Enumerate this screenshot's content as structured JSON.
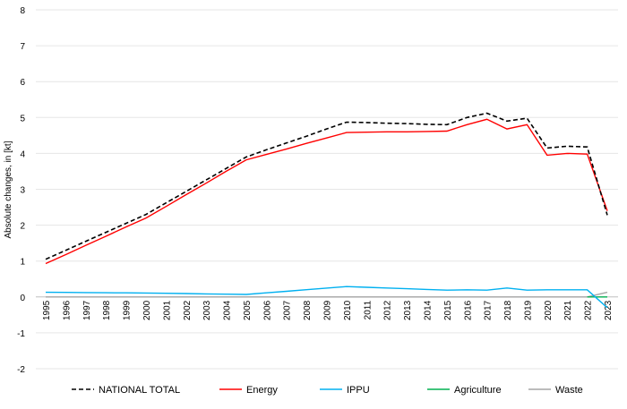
{
  "chart_data": {
    "type": "line",
    "title": "",
    "xlabel": "",
    "ylabel": "Absolute changes, in [kt]",
    "ylim": [
      -2,
      8
    ],
    "yticks": [
      -2,
      -1,
      0,
      1,
      2,
      3,
      4,
      5,
      6,
      7,
      8
    ],
    "grid": true,
    "legend_position": "bottom",
    "categories": [
      "1995",
      "1996",
      "1997",
      "1998",
      "1999",
      "2000",
      "2001",
      "2002",
      "2003",
      "2004",
      "2005",
      "2006",
      "2007",
      "2008",
      "2009",
      "2010",
      "2011",
      "2012",
      "2013",
      "2014",
      "2015",
      "2016",
      "2017",
      "2018",
      "2019",
      "2020",
      "2021",
      "2022",
      "2023"
    ],
    "series": [
      {
        "name": "NATIONAL TOTAL",
        "color": "#000000",
        "dashed": true,
        "values": [
          1.05,
          1.3,
          1.55,
          1.8,
          2.05,
          2.3,
          2.62,
          2.94,
          3.26,
          3.58,
          3.9,
          4.1,
          4.29,
          4.48,
          4.68,
          4.87,
          4.86,
          4.84,
          4.83,
          4.81,
          4.8,
          5.0,
          5.12,
          4.9,
          4.98,
          4.15,
          4.2,
          4.18,
          2.28
        ]
      },
      {
        "name": "Energy",
        "color": "#FF0000",
        "dashed": false,
        "values": [
          0.93,
          1.18,
          1.44,
          1.69,
          1.95,
          2.2,
          2.52,
          2.85,
          3.17,
          3.5,
          3.82,
          3.97,
          4.12,
          4.28,
          4.43,
          4.58,
          4.59,
          4.6,
          4.6,
          4.61,
          4.62,
          4.8,
          4.95,
          4.68,
          4.8,
          3.95,
          4.0,
          3.98,
          2.4
        ]
      },
      {
        "name": "IPPU",
        "color": "#00B0F0",
        "dashed": false,
        "values": [
          0.13,
          0.126,
          0.122,
          0.118,
          0.114,
          0.11,
          0.102,
          0.094,
          0.086,
          0.078,
          0.07,
          0.114,
          0.158,
          0.202,
          0.246,
          0.29,
          0.27,
          0.25,
          0.23,
          0.21,
          0.19,
          0.2,
          0.19,
          0.25,
          0.19,
          0.2,
          0.2,
          0.2,
          -0.3
        ]
      },
      {
        "name": "Agriculture",
        "color": "#00B050",
        "dashed": false,
        "values": [
          0,
          0,
          0,
          0,
          0,
          0,
          0,
          0,
          0,
          0,
          0,
          0,
          0,
          0,
          0,
          0,
          0,
          0,
          0,
          0,
          0,
          0,
          0,
          0,
          0,
          0,
          0,
          0,
          0.0
        ]
      },
      {
        "name": "Waste",
        "color": "#A5A5A5",
        "dashed": false,
        "values": [
          0,
          0,
          0,
          0,
          0,
          0,
          0,
          0,
          0,
          0,
          0,
          0,
          0,
          0,
          0,
          0,
          0,
          0,
          0,
          0,
          0,
          0,
          0,
          0,
          0,
          0,
          0,
          0,
          0.13
        ]
      }
    ]
  }
}
